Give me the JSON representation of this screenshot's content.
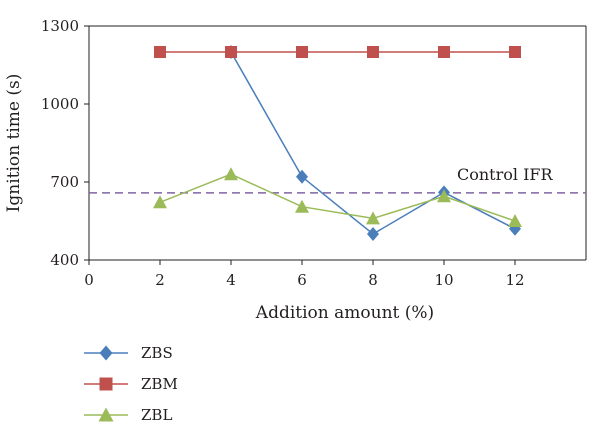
{
  "chart_data": {
    "type": "line",
    "xlabel": "Addition amount (%)",
    "ylabel": "Ignition time (s)",
    "xlim": [
      0,
      14
    ],
    "ylim": [
      400,
      1300
    ],
    "xticks": [
      0,
      2,
      4,
      6,
      8,
      10,
      12
    ],
    "yticks": [
      400,
      700,
      1000,
      1300
    ],
    "grid": false,
    "legend_position": "bottom-left",
    "series": [
      {
        "name": "ZBS",
        "marker": "diamond",
        "color": "#4a7ebb",
        "x": [
          4,
          6,
          8,
          10,
          12
        ],
        "y": [
          1200,
          720,
          500,
          660,
          520
        ]
      },
      {
        "name": "ZBM",
        "marker": "square",
        "color": "#c0504d",
        "x": [
          2,
          4,
          6,
          8,
          10,
          12
        ],
        "y": [
          1200,
          1200,
          1200,
          1200,
          1200,
          1200
        ]
      },
      {
        "name": "ZBL",
        "marker": "triangle",
        "color": "#9bbb59",
        "x": [
          2,
          4,
          6,
          8,
          10,
          12
        ],
        "y": [
          622,
          730,
          605,
          560,
          645,
          550
        ]
      }
    ],
    "reference_line": {
      "label": "Control IFR",
      "y": 658,
      "color": "#8064a2",
      "style": "dashed"
    }
  }
}
